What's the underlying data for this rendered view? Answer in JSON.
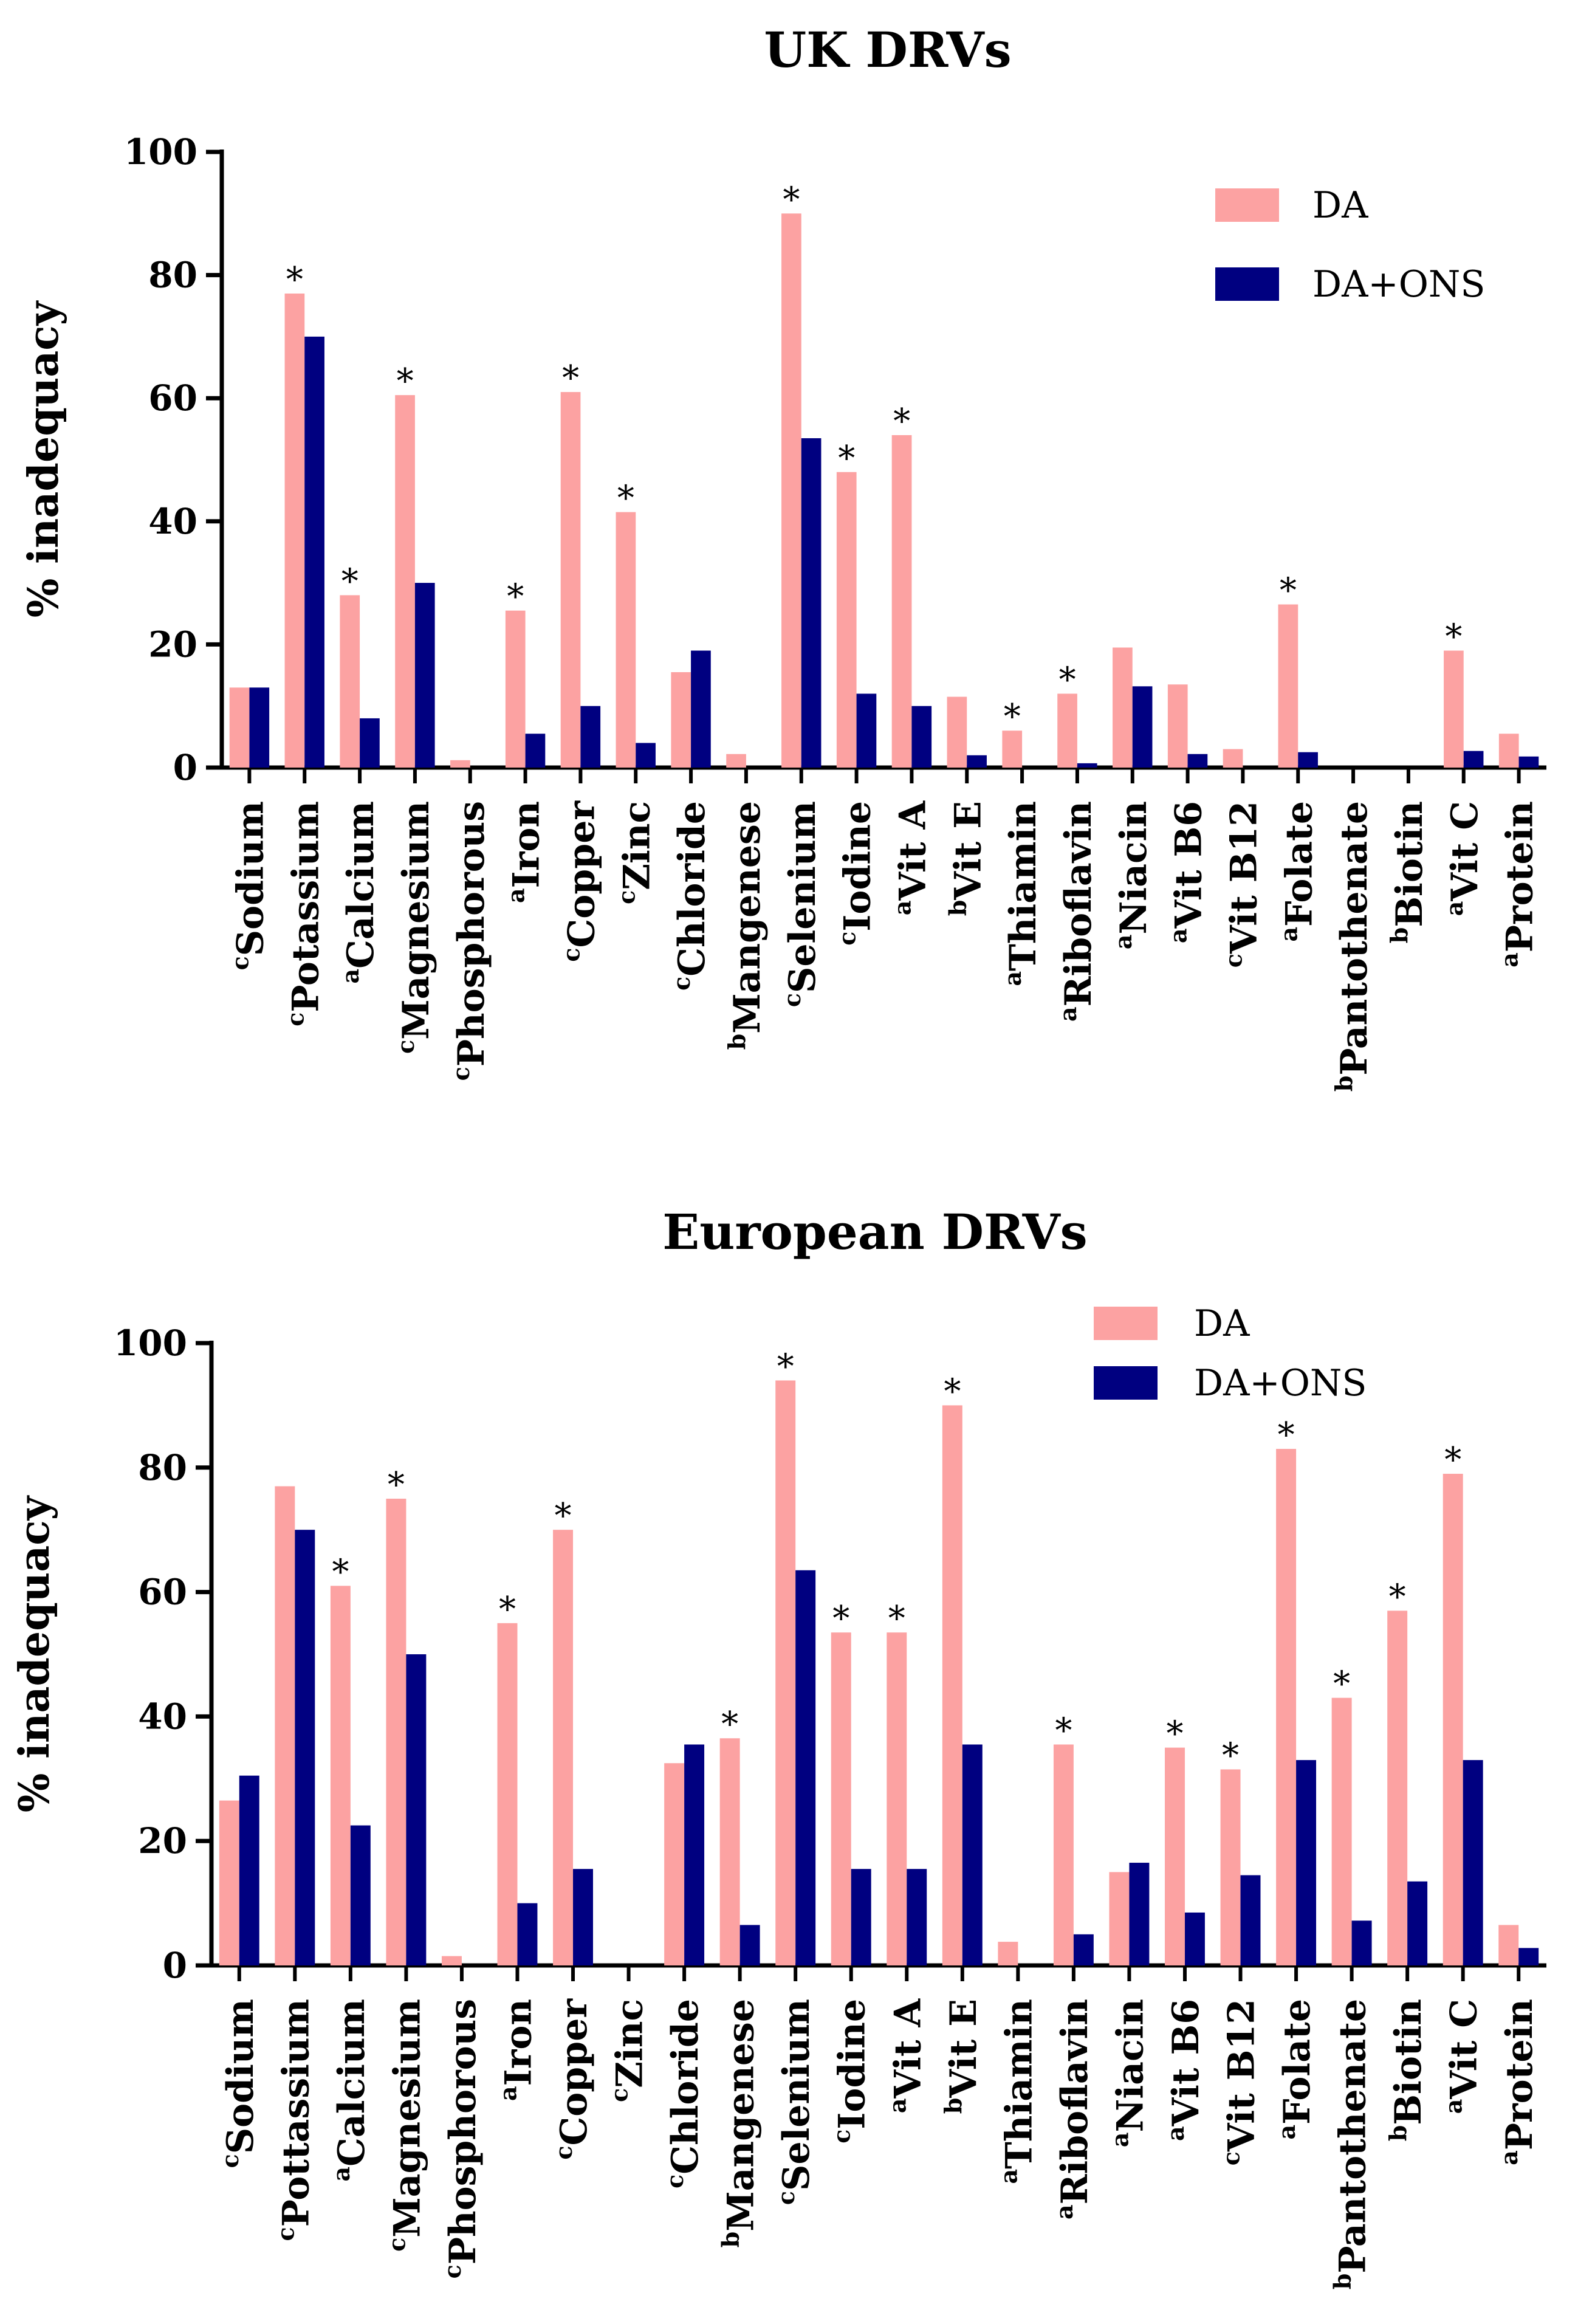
{
  "colors": {
    "da": "#fca2a2",
    "da_ons": "#000080",
    "axis": "#000000"
  },
  "chart_data": [
    {
      "type": "bar",
      "title": "UK DRVs",
      "xlabel": "",
      "ylabel": "% inadequacy",
      "ylim": [
        0,
        100
      ],
      "yticks": [
        "0",
        "20",
        "40",
        "60",
        "80",
        "100"
      ],
      "legend_position": "top-right",
      "categories": [
        {
          "sup": "c",
          "name": "Sodium"
        },
        {
          "sup": "c",
          "name": "Potassium"
        },
        {
          "sup": "a",
          "name": "Calcium"
        },
        {
          "sup": "c",
          "name": "Magnesium"
        },
        {
          "sup": "c",
          "name": "Phosphorous"
        },
        {
          "sup": "a",
          "name": "Iron"
        },
        {
          "sup": "c",
          "name": "Copper"
        },
        {
          "sup": "c",
          "name": "Zinc"
        },
        {
          "sup": "c",
          "name": "Chloride"
        },
        {
          "sup": "b",
          "name": "Mangenese"
        },
        {
          "sup": "c",
          "name": "Selenium"
        },
        {
          "sup": "c",
          "name": "Iodine"
        },
        {
          "sup": "a",
          "name": "Vit A"
        },
        {
          "sup": "b",
          "name": "Vit E"
        },
        {
          "sup": "a",
          "name": "Thiamin"
        },
        {
          "sup": "a",
          "name": "Riboflavin"
        },
        {
          "sup": "a",
          "name": "Niacin"
        },
        {
          "sup": "a",
          "name": "Vit B6"
        },
        {
          "sup": "c",
          "name": "Vit B12"
        },
        {
          "sup": "a",
          "name": "Folate"
        },
        {
          "sup": "b",
          "name": "Pantothenate"
        },
        {
          "sup": "b",
          "name": "Biotin"
        },
        {
          "sup": "a",
          "name": "Vit C"
        },
        {
          "sup": "a",
          "name": "Protein"
        }
      ],
      "series": [
        {
          "name": "DA",
          "values": [
            13,
            77,
            28,
            60.5,
            1.2,
            25.5,
            61,
            41.5,
            15.5,
            2.2,
            90,
            48,
            54,
            11.5,
            6,
            12,
            19.5,
            13.5,
            3,
            26.5,
            0,
            0,
            19,
            5.5
          ]
        },
        {
          "name": "DA+ONS",
          "values": [
            13,
            70,
            8,
            30,
            0,
            5.5,
            10,
            4,
            19,
            0,
            53.5,
            12,
            10,
            2,
            0,
            0.7,
            13.2,
            2.2,
            0,
            2.5,
            0,
            0,
            2.7,
            1.8
          ]
        }
      ],
      "significance_marker": "*",
      "significant": [
        false,
        true,
        true,
        true,
        false,
        true,
        true,
        true,
        false,
        false,
        true,
        true,
        true,
        false,
        true,
        true,
        false,
        false,
        false,
        true,
        false,
        false,
        true,
        false
      ]
    },
    {
      "type": "bar",
      "title": "European DRVs",
      "xlabel": "",
      "ylabel": "% inadequacy",
      "ylim": [
        0,
        100
      ],
      "yticks": [
        "0",
        "20",
        "40",
        "60",
        "80",
        "100"
      ],
      "legend_position": "top-right",
      "categories": [
        {
          "sup": "c",
          "name": "Sodium"
        },
        {
          "sup": "c",
          "name": "Pottassium"
        },
        {
          "sup": "a",
          "name": "Calcium"
        },
        {
          "sup": "c",
          "name": "Magnesium"
        },
        {
          "sup": "c",
          "name": "Phosphorous"
        },
        {
          "sup": "a",
          "name": "Iron"
        },
        {
          "sup": "c",
          "name": "Copper"
        },
        {
          "sup": "c",
          "name": "Zinc"
        },
        {
          "sup": "c",
          "name": "Chloride"
        },
        {
          "sup": "b",
          "name": "Mangenese"
        },
        {
          "sup": "c",
          "name": "Selenium"
        },
        {
          "sup": "c",
          "name": "Iodine"
        },
        {
          "sup": "a",
          "name": "Vit A"
        },
        {
          "sup": "b",
          "name": "Vit E"
        },
        {
          "sup": "a",
          "name": "Thiamin"
        },
        {
          "sup": "a",
          "name": "Riboflavin"
        },
        {
          "sup": "a",
          "name": "Niacin"
        },
        {
          "sup": "a",
          "name": "Vit B6"
        },
        {
          "sup": "c",
          "name": "Vit B12"
        },
        {
          "sup": "a",
          "name": "Folate"
        },
        {
          "sup": "b",
          "name": "Pantothenate"
        },
        {
          "sup": "b",
          "name": "Biotin"
        },
        {
          "sup": "a",
          "name": "Vit C"
        },
        {
          "sup": "a",
          "name": "Protein"
        }
      ],
      "series": [
        {
          "name": "DA",
          "values": [
            26.5,
            77,
            61,
            75,
            1.5,
            55,
            70,
            0,
            32.5,
            36.5,
            94,
            53.5,
            53.5,
            90,
            3.8,
            35.5,
            15,
            35,
            31.5,
            83,
            43,
            57,
            79,
            6.5
          ]
        },
        {
          "name": "DA+ONS",
          "values": [
            30.5,
            70,
            22.5,
            50,
            0,
            10,
            15.5,
            0,
            35.5,
            6.5,
            63.5,
            15.5,
            15.5,
            35.5,
            0,
            5,
            16.5,
            8.5,
            14.5,
            33,
            7.2,
            13.5,
            33,
            2.8
          ]
        }
      ],
      "significance_marker": "*",
      "significant": [
        false,
        false,
        true,
        true,
        false,
        true,
        true,
        false,
        false,
        true,
        true,
        true,
        true,
        true,
        false,
        true,
        false,
        true,
        true,
        true,
        true,
        true,
        true,
        false
      ]
    }
  ]
}
